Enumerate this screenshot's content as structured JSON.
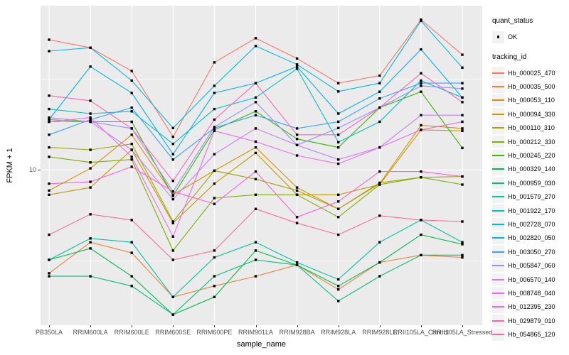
{
  "figure": {
    "y_axis": {
      "label": "FPKM + 1",
      "tick_label": "10"
    },
    "x_axis": {
      "label": "sample_name"
    },
    "legend": {
      "quant_title": "quant_status",
      "quant_items": [
        {
          "label": "OK",
          "shape": "point"
        }
      ],
      "tracking_title": "tracking_id"
    },
    "colors": {
      "panel_background": "#EBEBEB",
      "gridline": "#FFFFFF",
      "legend_key_background": "#F2F2F2",
      "tick_text": "#4D4D4D",
      "axis_tick_mark": "#333333",
      "marker": "#000000"
    }
  },
  "chart_data": {
    "type": "line",
    "xlabel": "sample_name",
    "ylabel": "FPKM + 1",
    "x_categories": [
      "PB350LA",
      "RRIM600LA",
      "RRIM600LE",
      "RRIM600SE",
      "RRIM600PE",
      "RRIM901LA",
      "RRIM928BA",
      "RRIM928LA",
      "RRIM928LE",
      "RRII105LA_Control",
      "RRII105LA_Stressed"
    ],
    "y_scale": "log10",
    "ylim": [
      1.4,
      80
    ],
    "y_major_ticks": [
      10
    ],
    "y_minor_gridlines": [
      3.162,
      31.62
    ],
    "grid": true,
    "legend_position": "right",
    "point_shape": "small-black-square",
    "series": [
      {
        "name": "Hb_000025_470",
        "color": "#F8766D",
        "values": [
          52,
          47,
          35,
          15.2,
          39,
          53,
          41,
          30,
          33,
          67,
          43
        ]
      },
      {
        "name": "Hb_000035_500",
        "color": "#EA8331",
        "values": [
          2.7,
          4.0,
          3.5,
          2.0,
          2.3,
          2.6,
          3.0,
          2.2,
          3.1,
          3.4,
          3.3
        ]
      },
      {
        "name": "Hb_000053_110",
        "color": "#D89000",
        "values": [
          7.7,
          10.2,
          15.6,
          7.3,
          9.9,
          13.3,
          8.0,
          6.1,
          8.4,
          17.6,
          16.9
        ]
      },
      {
        "name": "Hb_000094_330",
        "color": "#C09B00",
        "values": [
          7.3,
          8.0,
          12.9,
          5.1,
          8.4,
          12.4,
          7.3,
          7.3,
          8.3,
          16.6,
          16.4
        ]
      },
      {
        "name": "Hb_000110_310",
        "color": "#A3A500",
        "values": [
          13.3,
          12.9,
          13.9,
          5.2,
          9.9,
          8.9,
          7.7,
          6.1,
          8.5,
          9.1,
          9.2
        ]
      },
      {
        "name": "Hb_000212_330",
        "color": "#7CAE00",
        "values": [
          11.8,
          11.0,
          11.4,
          3.6,
          7.0,
          7.3,
          7.3,
          5.5,
          8.3,
          9.1,
          8.3
        ]
      },
      {
        "name": "Hb_000245_220",
        "color": "#39B600",
        "values": [
          18.9,
          18.4,
          18.4,
          7.2,
          16.6,
          21.0,
          14.8,
          13.3,
          22.0,
          26.9,
          13.2
        ]
      },
      {
        "name": "Hb_000329_140",
        "color": "#00BB4E",
        "values": [
          3.2,
          3.7,
          2.6,
          1.6,
          2.0,
          3.6,
          3.0,
          2.3,
          3.1,
          4.4,
          3.9
        ]
      },
      {
        "name": "Hb_000959_030",
        "color": "#00BF7D",
        "values": [
          2.6,
          2.6,
          2.3,
          1.6,
          2.6,
          3.2,
          3.0,
          1.9,
          2.6,
          3.4,
          3.4
        ]
      },
      {
        "name": "Hb_001579_270",
        "color": "#00C1A3",
        "values": [
          3.2,
          4.2,
          4.0,
          2.0,
          3.3,
          4.0,
          3.1,
          2.5,
          4.0,
          5.3,
          4.0
        ]
      },
      {
        "name": "Hb_001922_170",
        "color": "#00BFC4",
        "values": [
          21.6,
          20.4,
          21.0,
          13.9,
          21.6,
          25.0,
          36.0,
          14.2,
          18.4,
          31.0,
          25.0
        ]
      },
      {
        "name": "Hb_002728_070",
        "color": "#00BAE0",
        "values": [
          45,
          47,
          31,
          17,
          29,
          48,
          38,
          27,
          30,
          66,
          36.5
        ]
      },
      {
        "name": "Hb_002820_050",
        "color": "#00B0F6",
        "values": [
          18.9,
          37,
          26.5,
          12.2,
          26.5,
          30,
          37,
          20.4,
          26.9,
          46,
          25
        ]
      },
      {
        "name": "Hb_003050_270",
        "color": "#35A2FF",
        "values": [
          15.6,
          18.9,
          22.0,
          11.4,
          17.0,
          20.0,
          16.9,
          18.4,
          24.7,
          30.0,
          30.0
        ]
      },
      {
        "name": "Hb_005847_060",
        "color": "#9590FF",
        "values": [
          18.4,
          18.4,
          16.9,
          7.6,
          17.2,
          23.6,
          13.7,
          17.0,
          22.0,
          29.0,
          28.0
        ]
      },
      {
        "name": "Hb_006570_140",
        "color": "#C77CFF",
        "values": [
          19.4,
          18.4,
          12.9,
          6.9,
          12.2,
          16.9,
          13.7,
          11.4,
          13.3,
          20.0,
          20.0
        ]
      },
      {
        "name": "Hb_008748_040",
        "color": "#E76BF3",
        "values": [
          18.4,
          19.4,
          11.8,
          4.3,
          16.4,
          14.3,
          12.0,
          10.8,
          13.3,
          16.6,
          18.4
        ]
      },
      {
        "name": "Hb_012395_230",
        "color": "#FA62DB",
        "values": [
          8.4,
          8.6,
          10.4,
          7.6,
          6.5,
          9.8,
          5.5,
          6.7,
          9.8,
          9.8,
          9.2
        ]
      },
      {
        "name": "Hb_029879_010",
        "color": "#FF62BC",
        "values": [
          25.6,
          24.0,
          16.9,
          8.7,
          18.9,
          30.0,
          15.6,
          15.6,
          22.0,
          34.0,
          23.6
        ]
      },
      {
        "name": "Hb_054865_120",
        "color": "#FF6A98",
        "values": [
          4.4,
          5.7,
          5.3,
          3.2,
          3.6,
          6.1,
          5.1,
          4.4,
          5.6,
          5.3,
          5.2
        ]
      }
    ]
  }
}
